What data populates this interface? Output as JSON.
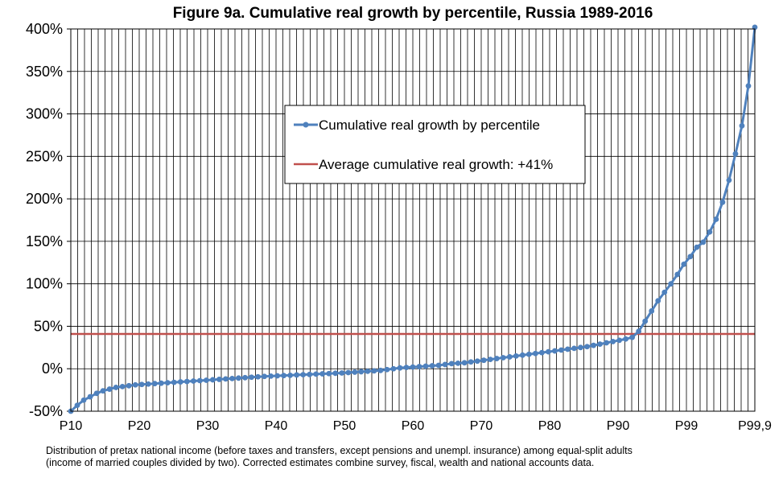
{
  "note": {
    "line1": "Distribution of pretax national income (before taxes and transfers, except pensions and unempl. insurance) among equal-split adults",
    "line2": "(income of married couples divided by two). Corrected estimates combine survey, fiscal, wealth and national accounts data."
  },
  "chart_data": {
    "type": "line",
    "title": "Figure 9a. Cumulative real growth by percentile, Russia 1989-2016",
    "xlabel": "",
    "ylabel": "",
    "ylim": [
      -50,
      400
    ],
    "yticks": [
      -50,
      0,
      50,
      100,
      150,
      200,
      250,
      300,
      350,
      400
    ],
    "ytick_labels": [
      "-50%",
      "0%",
      "50%",
      "100%",
      "150%",
      "200%",
      "250%",
      "300%",
      "350%",
      "400%"
    ],
    "xtick_labels": [
      "P10",
      "P20",
      "P30",
      "P40",
      "P50",
      "P60",
      "P70",
      "P80",
      "P90",
      "P99",
      "P99,9"
    ],
    "grid": true,
    "legend_position": "upper-center",
    "series": [
      {
        "name": "Cumulative real growth by percentile",
        "color": "#4f81bd",
        "marker": "circle",
        "values": [
          -50,
          -43,
          -37,
          -33,
          -29,
          -26,
          -24,
          -22,
          -21,
          -20,
          -19,
          -18.5,
          -18,
          -17.5,
          -17,
          -16.5,
          -16,
          -15.5,
          -15,
          -14.5,
          -14,
          -13.5,
          -13,
          -12.5,
          -12,
          -11.5,
          -11,
          -10.5,
          -10,
          -9.5,
          -9,
          -8.7,
          -8.3,
          -8,
          -7.7,
          -7.3,
          -7,
          -6.7,
          -6.3,
          -6,
          -5.7,
          -5.3,
          -5,
          -4.5,
          -4,
          -3.5,
          -3,
          -2.5,
          -2,
          -1,
          0,
          1,
          1.5,
          2,
          2.5,
          3,
          3.5,
          4,
          5,
          6,
          6.5,
          7,
          8,
          9,
          10,
          11,
          12,
          13,
          14,
          15,
          16,
          17,
          18,
          19,
          20,
          21,
          22,
          23,
          24,
          25,
          26,
          27.5,
          29,
          30.5,
          32,
          33.5,
          35,
          37,
          44,
          56,
          68,
          80,
          90,
          100,
          111,
          123,
          132,
          143,
          149,
          161,
          176,
          196,
          222,
          253,
          286,
          333,
          402
        ]
      },
      {
        "name": "Average cumulative real growth: +41%",
        "color": "#c0504d",
        "constant": 41
      }
    ]
  }
}
